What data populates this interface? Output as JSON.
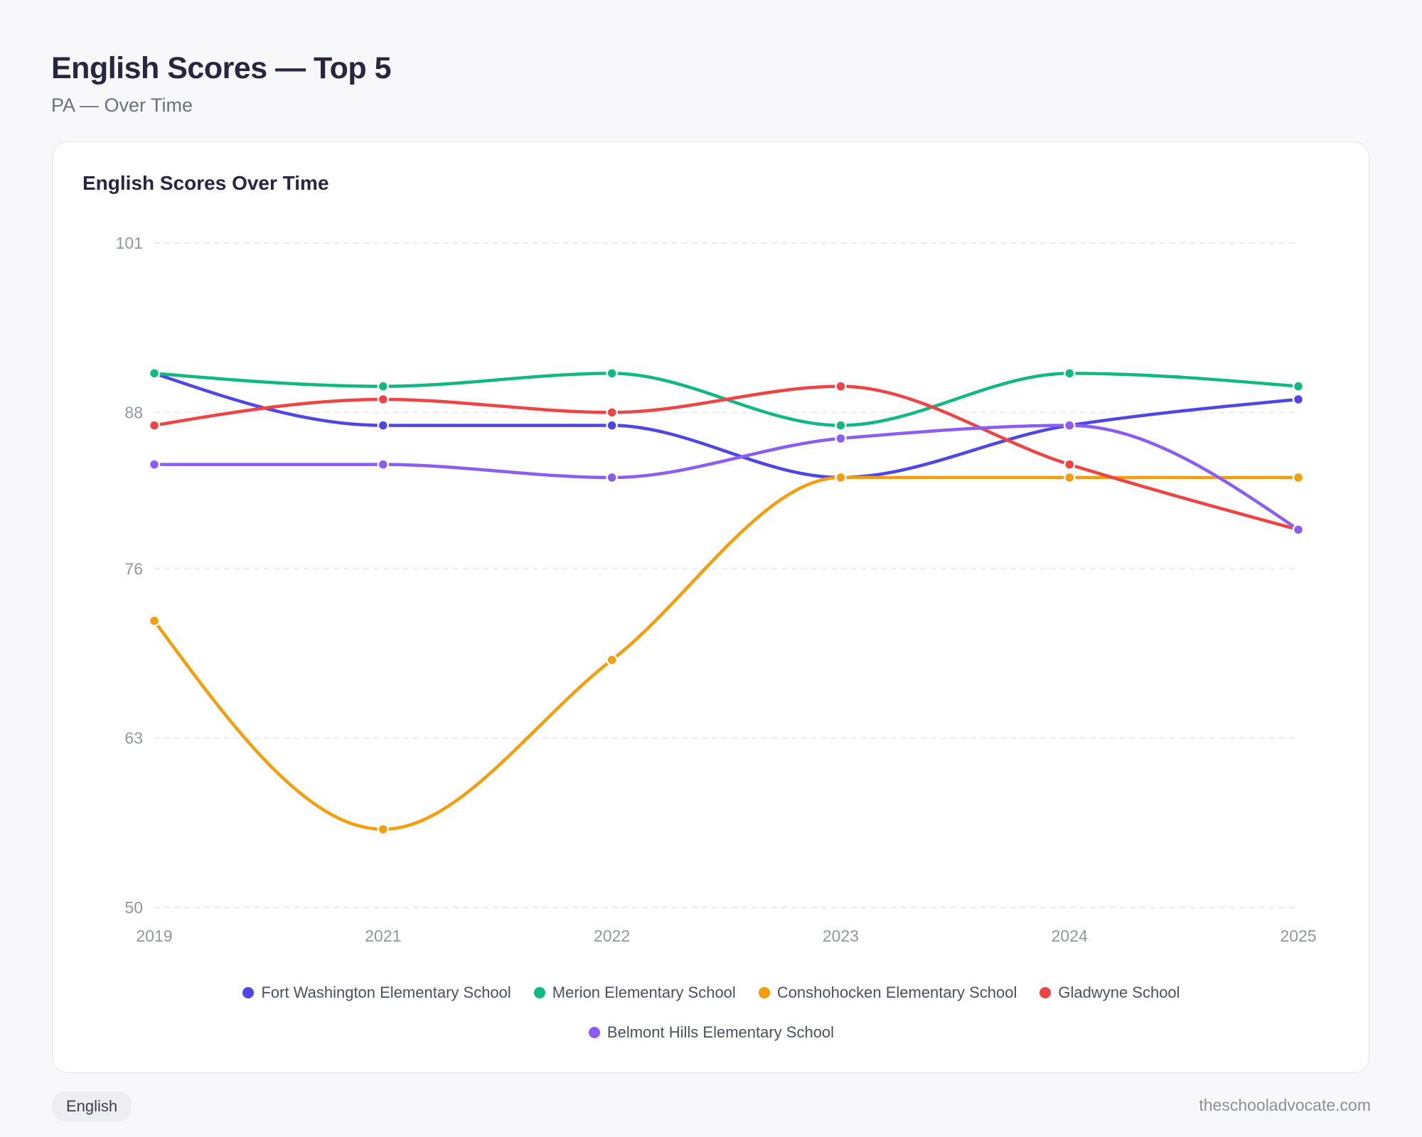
{
  "header": {
    "title": "English Scores — Top 5",
    "subtitle": "PA — Over Time"
  },
  "card": {
    "title": "English Scores Over Time"
  },
  "footer": {
    "tag": "English",
    "site": "theschooladvocate.com"
  },
  "chart_data": {
    "type": "line",
    "title": "English Scores Over Time",
    "xlabel": "",
    "ylabel": "",
    "categories": [
      "2019",
      "2021",
      "2022",
      "2023",
      "2024",
      "2025"
    ],
    "ylim": [
      50,
      101
    ],
    "yticks": [
      101,
      88,
      76,
      63,
      50
    ],
    "grid": true,
    "legend": "bottom",
    "series": [
      {
        "name": "Fort Washington Elementary School",
        "color": "#4f46e5",
        "values": [
          91,
          87,
          87,
          83,
          87,
          89
        ]
      },
      {
        "name": "Merion Elementary School",
        "color": "#10b981",
        "values": [
          91,
          90,
          91,
          87,
          91,
          90
        ]
      },
      {
        "name": "Conshohocken Elementary School",
        "color": "#f59e0b",
        "values": [
          72,
          56,
          69,
          83,
          83,
          83
        ]
      },
      {
        "name": "Gladwyne School",
        "color": "#ef4444",
        "values": [
          87,
          89,
          88,
          90,
          84,
          79
        ]
      },
      {
        "name": "Belmont Hills Elementary School",
        "color": "#8b5cf6",
        "values": [
          84,
          84,
          83,
          86,
          87,
          79
        ]
      }
    ]
  }
}
